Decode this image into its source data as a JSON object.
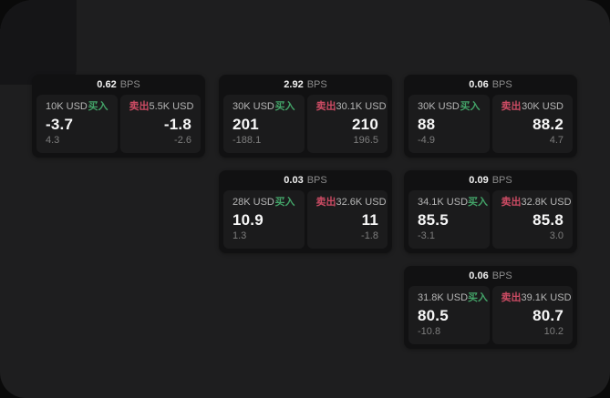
{
  "labels": {
    "bps_unit": "BPS",
    "buy": "买入",
    "sell": "卖出"
  },
  "theme": {
    "backdrop": "#0a0a0a",
    "surface": "#1e1e1f",
    "card_background": "#111112",
    "tile_background": "#1b1b1c",
    "buy_color": "#43a368",
    "sell_color": "#cb4b63",
    "price_color": "#f7f7f7",
    "amount_color": "#b6b6b6",
    "muted_color": "#7d7d7d"
  },
  "cards": [
    {
      "col": 0,
      "row": 0,
      "bps": "0.62",
      "buy": {
        "amount": "10K USD",
        "value": "-3.7",
        "delta": "4.3"
      },
      "sell": {
        "amount": "5.5K USD",
        "value": "-1.8",
        "delta": "-2.6"
      }
    },
    {
      "col": 1,
      "row": 0,
      "bps": "2.92",
      "buy": {
        "amount": "30K USD",
        "value": "201",
        "delta": "-188.1"
      },
      "sell": {
        "amount": "30.1K USD",
        "value": "210",
        "delta": "196.5"
      }
    },
    {
      "col": 2,
      "row": 0,
      "bps": "0.06",
      "buy": {
        "amount": "30K USD",
        "value": "88",
        "delta": "-4.9"
      },
      "sell": {
        "amount": "30K USD",
        "value": "88.2",
        "delta": "4.7"
      }
    },
    {
      "col": 1,
      "row": 1,
      "bps": "0.03",
      "buy": {
        "amount": "28K USD",
        "value": "10.9",
        "delta": "1.3"
      },
      "sell": {
        "amount": "32.6K USD",
        "value": "11",
        "delta": "-1.8"
      }
    },
    {
      "col": 2,
      "row": 1,
      "bps": "0.09",
      "buy": {
        "amount": "34.1K USD",
        "value": "85.5",
        "delta": "-3.1"
      },
      "sell": {
        "amount": "32.8K USD",
        "value": "85.8",
        "delta": "3.0"
      }
    },
    {
      "col": 2,
      "row": 2,
      "bps": "0.06",
      "buy": {
        "amount": "31.8K USD",
        "value": "80.5",
        "delta": "-10.8"
      },
      "sell": {
        "amount": "39.1K USD",
        "value": "80.7",
        "delta": "10.2"
      }
    }
  ]
}
